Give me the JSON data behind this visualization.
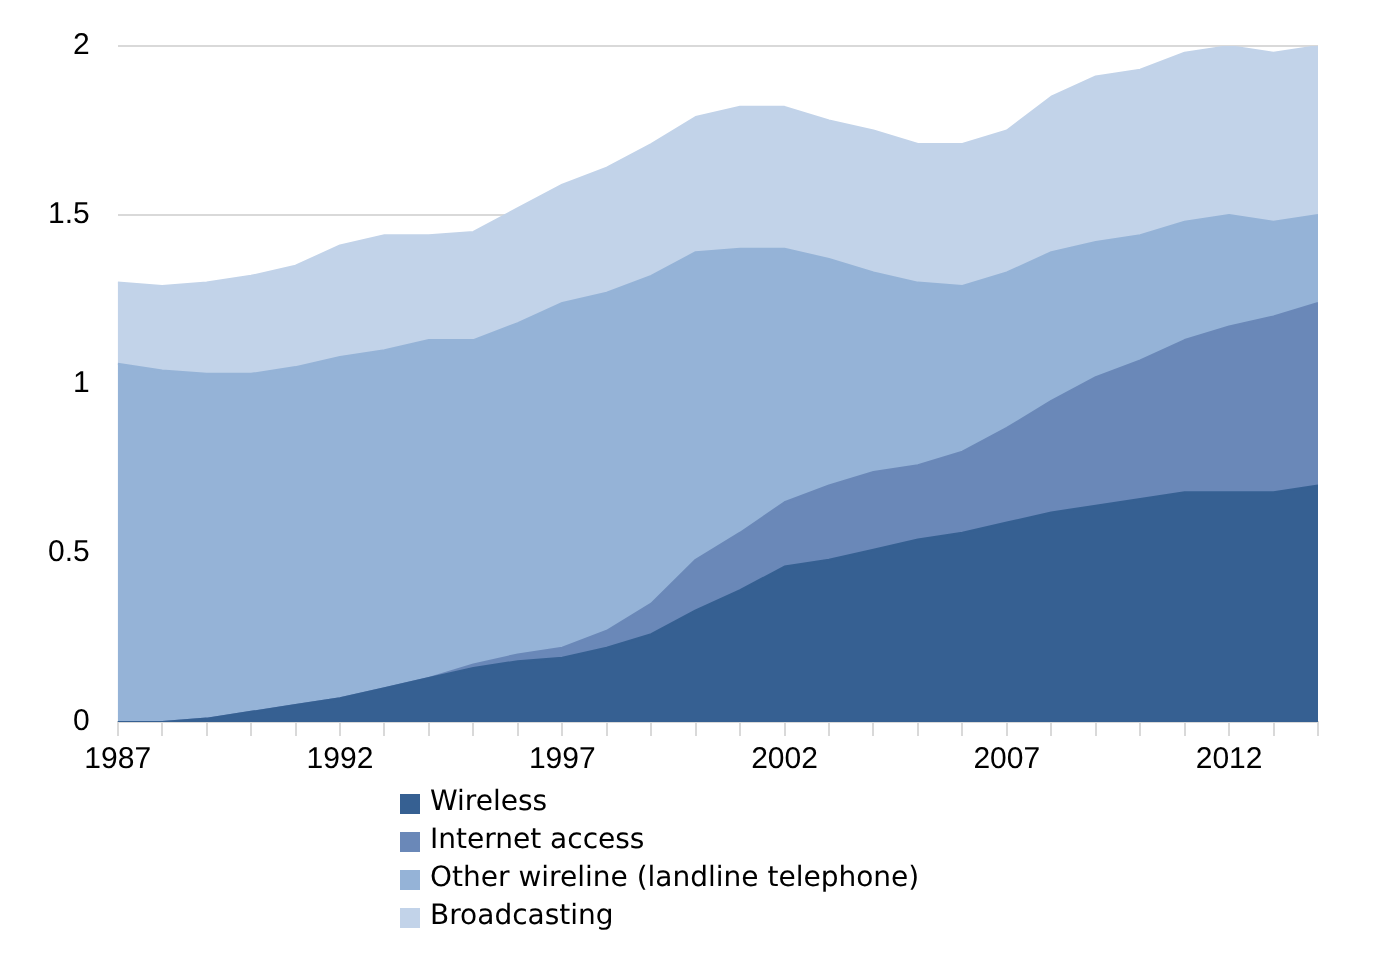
{
  "chart_data": {
    "type": "area",
    "stacked": true,
    "x": [
      1987,
      1988,
      1989,
      1990,
      1991,
      1992,
      1993,
      1994,
      1995,
      1996,
      1997,
      1998,
      1999,
      2000,
      2001,
      2002,
      2003,
      2004,
      2005,
      2006,
      2007,
      2008,
      2009,
      2010,
      2011,
      2012,
      2013,
      2014
    ],
    "series": [
      {
        "name": "Wireless",
        "color": "#366092",
        "values": [
          0,
          0,
          0.01,
          0.03,
          0.05,
          0.07,
          0.1,
          0.13,
          0.16,
          0.18,
          0.19,
          0.22,
          0.26,
          0.33,
          0.39,
          0.46,
          0.48,
          0.51,
          0.54,
          0.56,
          0.59,
          0.62,
          0.64,
          0.66,
          0.68,
          0.68,
          0.68,
          0.7
        ]
      },
      {
        "name": "Internet access",
        "color": "#6a88b8",
        "values": [
          0,
          0,
          0,
          0,
          0,
          0,
          0,
          0,
          0.01,
          0.02,
          0.03,
          0.05,
          0.09,
          0.15,
          0.17,
          0.19,
          0.22,
          0.23,
          0.22,
          0.24,
          0.28,
          0.33,
          0.38,
          0.41,
          0.45,
          0.49,
          0.52,
          0.54
        ]
      },
      {
        "name": "Other wireline (landline telephone)",
        "color": "#95b3d7",
        "values": [
          1.06,
          1.04,
          1.02,
          1.0,
          1.0,
          1.01,
          1.0,
          1.0,
          0.96,
          0.98,
          1.02,
          1.0,
          0.97,
          0.91,
          0.84,
          0.75,
          0.67,
          0.59,
          0.54,
          0.49,
          0.46,
          0.44,
          0.4,
          0.37,
          0.35,
          0.33,
          0.28,
          0.26
        ]
      },
      {
        "name": "Broadcasting",
        "color": "#c2d3e9",
        "values": [
          0.24,
          0.25,
          0.27,
          0.29,
          0.3,
          0.33,
          0.34,
          0.31,
          0.32,
          0.34,
          0.35,
          0.37,
          0.39,
          0.4,
          0.42,
          0.42,
          0.41,
          0.42,
          0.41,
          0.42,
          0.42,
          0.46,
          0.49,
          0.49,
          0.5,
          0.5,
          0.5,
          0.5
        ]
      }
    ],
    "xlim": [
      1987,
      2014
    ],
    "xticks": [
      1987,
      {
        "value": 1988,
        "label": null
      },
      {
        "value": 1989,
        "label": null
      },
      {
        "value": 1990,
        "label": null
      },
      {
        "value": 1991,
        "label": null
      },
      1992,
      {
        "value": 1993,
        "label": null
      },
      {
        "value": 1994,
        "label": null
      },
      {
        "value": 1995,
        "label": null
      },
      {
        "value": 1996,
        "label": null
      },
      1997,
      {
        "value": 1998,
        "label": null
      },
      {
        "value": 1999,
        "label": null
      },
      {
        "value": 2000,
        "label": null
      },
      {
        "value": 2001,
        "label": null
      },
      2002,
      {
        "value": 2003,
        "label": null
      },
      {
        "value": 2004,
        "label": null
      },
      {
        "value": 2005,
        "label": null
      },
      {
        "value": 2006,
        "label": null
      },
      2007,
      {
        "value": 2008,
        "label": null
      },
      {
        "value": 2009,
        "label": null
      },
      {
        "value": 2010,
        "label": null
      },
      {
        "value": 2011,
        "label": null
      },
      2012,
      {
        "value": 2013,
        "label": null
      },
      {
        "value": 2014,
        "label": null
      }
    ],
    "ylim": [
      0,
      2
    ],
    "yticks": [
      0,
      0.5,
      1,
      1.5,
      2
    ],
    "grid": "y",
    "legend": "bottom"
  }
}
